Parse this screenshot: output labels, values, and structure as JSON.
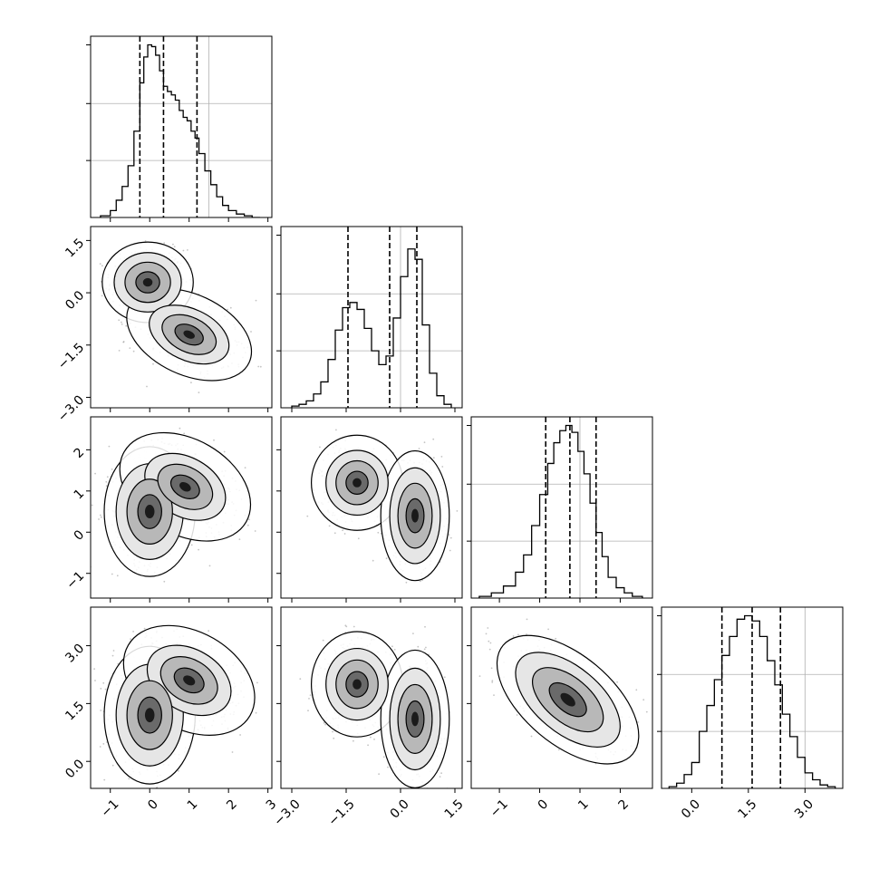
{
  "chart_data": {
    "type": "corner",
    "parameters": 4,
    "panels": [
      {
        "kind": "histogram",
        "row": 0,
        "col": 0,
        "xlim": [
          -1.5,
          3.1
        ],
        "ylim": [
          0,
          1.05
        ],
        "bins": [
          -1.25,
          -1.0,
          -0.85,
          -0.7,
          -0.55,
          -0.4,
          -0.25,
          -0.15,
          -0.05,
          0.05,
          0.15,
          0.25,
          0.35,
          0.45,
          0.55,
          0.65,
          0.75,
          0.85,
          0.95,
          1.05,
          1.15,
          1.25,
          1.4,
          1.55,
          1.7,
          1.85,
          2.0,
          2.2,
          2.4,
          2.6,
          2.8
        ],
        "counts": [
          0.01,
          0.04,
          0.1,
          0.18,
          0.3,
          0.5,
          0.78,
          0.93,
          1.0,
          0.99,
          0.94,
          0.85,
          0.76,
          0.73,
          0.71,
          0.68,
          0.62,
          0.58,
          0.56,
          0.5,
          0.46,
          0.37,
          0.27,
          0.19,
          0.12,
          0.07,
          0.04,
          0.02,
          0.01,
          0.0
        ],
        "quantiles": [
          -0.25,
          0.35,
          1.2
        ],
        "xticks": [
          -1,
          0,
          1,
          2,
          3
        ],
        "yticks": [
          0.33,
          0.66,
          1.0
        ],
        "ygrid": [
          0.33,
          0.66
        ],
        "xgrid": [
          1.5
        ]
      },
      {
        "kind": "histogram",
        "row": 1,
        "col": 1,
        "xlim": [
          -3.3,
          1.7
        ],
        "ylim": [
          0,
          1.05
        ],
        "bins": [
          -3.0,
          -2.8,
          -2.6,
          -2.4,
          -2.2,
          -2.0,
          -1.8,
          -1.6,
          -1.4,
          -1.2,
          -1.0,
          -0.8,
          -0.6,
          -0.4,
          -0.2,
          0.0,
          0.2,
          0.4,
          0.6,
          0.8,
          1.0,
          1.2,
          1.4
        ],
        "counts": [
          0.01,
          0.02,
          0.04,
          0.08,
          0.15,
          0.28,
          0.45,
          0.58,
          0.61,
          0.57,
          0.46,
          0.33,
          0.25,
          0.3,
          0.52,
          0.76,
          0.92,
          0.86,
          0.48,
          0.2,
          0.07,
          0.02
        ],
        "quantiles": [
          -1.45,
          -0.3,
          0.45
        ],
        "xticks": [
          -3.0,
          -1.5,
          0.0,
          1.5
        ],
        "yticks": [
          0.33,
          0.66,
          1.0
        ],
        "ygrid": [
          0.33,
          0.66
        ],
        "xgrid": [
          0.0
        ]
      },
      {
        "kind": "histogram",
        "row": 2,
        "col": 2,
        "xlim": [
          -1.7,
          2.8
        ],
        "ylim": [
          0,
          1.05
        ],
        "bins": [
          -1.5,
          -1.2,
          -0.9,
          -0.6,
          -0.4,
          -0.2,
          0.0,
          0.2,
          0.35,
          0.5,
          0.65,
          0.8,
          0.95,
          1.1,
          1.25,
          1.4,
          1.55,
          1.7,
          1.9,
          2.1,
          2.3,
          2.55
        ],
        "counts": [
          0.01,
          0.03,
          0.07,
          0.15,
          0.25,
          0.42,
          0.6,
          0.78,
          0.9,
          0.97,
          1.0,
          0.96,
          0.85,
          0.72,
          0.55,
          0.38,
          0.24,
          0.12,
          0.06,
          0.03,
          0.01
        ],
        "quantiles": [
          0.15,
          0.75,
          1.4
        ],
        "xticks": [
          -1,
          0,
          1,
          2
        ],
        "yticks": [
          0.33,
          0.66,
          1.0
        ],
        "ygrid": [
          0.33,
          0.66
        ],
        "xgrid": [
          1.0
        ]
      },
      {
        "kind": "histogram",
        "row": 3,
        "col": 3,
        "xlim": [
          -0.8,
          4.0
        ],
        "ylim": [
          0,
          1.05
        ],
        "bins": [
          -0.6,
          -0.4,
          -0.2,
          0.0,
          0.2,
          0.4,
          0.6,
          0.8,
          1.0,
          1.2,
          1.4,
          1.6,
          1.8,
          2.0,
          2.2,
          2.4,
          2.6,
          2.8,
          3.0,
          3.2,
          3.4,
          3.6,
          3.8
        ],
        "counts": [
          0.01,
          0.03,
          0.08,
          0.15,
          0.33,
          0.48,
          0.63,
          0.77,
          0.88,
          0.98,
          1.0,
          0.97,
          0.88,
          0.74,
          0.6,
          0.43,
          0.3,
          0.18,
          0.09,
          0.05,
          0.02,
          0.01
        ],
        "quantiles": [
          0.8,
          1.6,
          2.35
        ],
        "xticks": [
          0.0,
          1.5,
          3.0
        ],
        "yticks": [
          0.33,
          0.66,
          1.0
        ],
        "ygrid": [
          0.33,
          0.66
        ],
        "xgrid": [
          3.0
        ]
      },
      {
        "kind": "density",
        "row": 1,
        "col": 0,
        "xlim": [
          -1.5,
          3.1
        ],
        "ylim": [
          -3.3,
          1.9
        ],
        "modes": [
          {
            "cx": -0.05,
            "cy": 0.3,
            "rx": 0.55,
            "ry": 0.55,
            "rot": 0,
            "w": 1.0
          },
          {
            "cx": 1.0,
            "cy": -1.2,
            "rx": 0.8,
            "ry": 0.55,
            "rot": -25,
            "w": 0.75
          }
        ],
        "xticks": [
          -1,
          0,
          1,
          2,
          3
        ],
        "yticks": [
          -3.0,
          -1.5,
          0.0,
          1.5
        ]
      },
      {
        "kind": "density",
        "row": 2,
        "col": 0,
        "xlim": [
          -1.5,
          3.1
        ],
        "ylim": [
          -1.6,
          2.8
        ],
        "modes": [
          {
            "cx": 0.0,
            "cy": 0.5,
            "rx": 0.55,
            "ry": 0.75,
            "rot": 0,
            "w": 1.0
          },
          {
            "cx": 0.9,
            "cy": 1.1,
            "rx": 0.85,
            "ry": 0.55,
            "rot": -30,
            "w": 0.7
          }
        ],
        "xticks": [
          -1,
          0,
          1,
          2,
          3
        ],
        "yticks": [
          -1,
          0,
          1,
          2
        ]
      },
      {
        "kind": "density",
        "row": 2,
        "col": 1,
        "xlim": [
          -3.3,
          1.7
        ],
        "ylim": [
          -1.6,
          2.8
        ],
        "modes": [
          {
            "cx": -1.2,
            "cy": 1.2,
            "rx": 0.6,
            "ry": 0.55,
            "rot": 0,
            "w": 0.85
          },
          {
            "cx": 0.4,
            "cy": 0.4,
            "rx": 0.45,
            "ry": 0.75,
            "rot": 0,
            "w": 1.0
          }
        ],
        "xticks": [
          -3.0,
          -1.5,
          0.0,
          1.5
        ],
        "yticks": [
          -1,
          0,
          1,
          2
        ]
      },
      {
        "kind": "density",
        "row": 3,
        "col": 0,
        "xlim": [
          -1.5,
          3.1
        ],
        "ylim": [
          -0.7,
          4.0
        ],
        "modes": [
          {
            "cx": 0.0,
            "cy": 1.2,
            "rx": 0.55,
            "ry": 0.85,
            "rot": 0,
            "w": 1.0
          },
          {
            "cx": 1.0,
            "cy": 2.1,
            "rx": 0.85,
            "ry": 0.6,
            "rot": -30,
            "w": 0.75
          }
        ],
        "xticks": [
          -1,
          0,
          1,
          2,
          3
        ],
        "yticks": [
          0.0,
          1.5,
          3.0
        ]
      },
      {
        "kind": "density",
        "row": 3,
        "col": 1,
        "xlim": [
          -3.3,
          1.7
        ],
        "ylim": [
          -0.7,
          4.0
        ],
        "modes": [
          {
            "cx": -1.2,
            "cy": 2.0,
            "rx": 0.6,
            "ry": 0.65,
            "rot": 0,
            "w": 0.85
          },
          {
            "cx": 0.4,
            "cy": 1.1,
            "rx": 0.45,
            "ry": 0.85,
            "rot": 0,
            "w": 1.0
          }
        ],
        "xticks": [
          -3.0,
          -1.5,
          0.0,
          1.5
        ],
        "yticks": [
          0.0,
          1.5,
          3.0
        ]
      },
      {
        "kind": "density",
        "row": 3,
        "col": 2,
        "xlim": [
          -1.7,
          2.8
        ],
        "ylim": [
          -0.7,
          4.0
        ],
        "modes": [
          {
            "cx": 0.7,
            "cy": 1.6,
            "rx": 1.0,
            "ry": 0.55,
            "rot": -40,
            "w": 1.0
          }
        ],
        "xticks": [
          -1,
          0,
          1,
          2
        ],
        "yticks": [
          0.0,
          1.5,
          3.0
        ]
      }
    ],
    "tick_labels": {
      "col0_x": [
        "−1",
        "0",
        "1",
        "2",
        "3"
      ],
      "col1_x": [
        "−3.0",
        "−1.5",
        "0.0",
        "1.5"
      ],
      "col2_x": [
        "−1",
        "0",
        "1",
        "2"
      ],
      "col3_x": [
        "0.0",
        "1.5",
        "3.0"
      ],
      "row1_y": [
        "−3.0",
        "−1.5",
        "0.0",
        "1.5"
      ],
      "row2_y": [
        "−1",
        "0",
        "1",
        "2"
      ],
      "row3_y": [
        "0.0",
        "1.5",
        "3.0"
      ]
    },
    "xlabel": "",
    "ylabel": "",
    "title": ""
  }
}
